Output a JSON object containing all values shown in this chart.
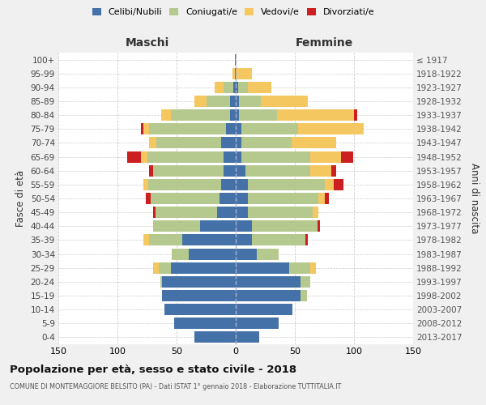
{
  "age_groups": [
    "100+",
    "95-99",
    "90-94",
    "85-89",
    "80-84",
    "75-79",
    "70-74",
    "65-69",
    "60-64",
    "55-59",
    "50-54",
    "45-49",
    "40-44",
    "35-39",
    "30-34",
    "25-29",
    "20-24",
    "15-19",
    "10-14",
    "5-9",
    "0-4"
  ],
  "birth_years": [
    "≤ 1917",
    "1918-1922",
    "1923-1927",
    "1928-1932",
    "1933-1937",
    "1938-1942",
    "1943-1947",
    "1948-1952",
    "1953-1957",
    "1958-1962",
    "1963-1967",
    "1968-1972",
    "1973-1977",
    "1978-1982",
    "1983-1987",
    "1988-1992",
    "1993-1997",
    "1998-2002",
    "2003-2007",
    "2008-2012",
    "2013-2017"
  ],
  "maschi": {
    "celibi": [
      1,
      1,
      2,
      5,
      5,
      8,
      12,
      10,
      10,
      12,
      14,
      16,
      30,
      45,
      40,
      55,
      62,
      62,
      60,
      52,
      35
    ],
    "coniugati": [
      0,
      0,
      8,
      20,
      50,
      65,
      55,
      65,
      60,
      62,
      58,
      52,
      40,
      28,
      14,
      10,
      2,
      0,
      0,
      0,
      0
    ],
    "vedovi": [
      0,
      2,
      8,
      10,
      8,
      5,
      6,
      5,
      0,
      4,
      0,
      0,
      0,
      5,
      0,
      5,
      0,
      0,
      0,
      0,
      0
    ],
    "divorziati": [
      0,
      0,
      0,
      0,
      0,
      2,
      0,
      12,
      3,
      0,
      4,
      2,
      0,
      0,
      0,
      0,
      0,
      0,
      0,
      0,
      0
    ]
  },
  "femmine": {
    "nubili": [
      0,
      0,
      2,
      3,
      3,
      5,
      5,
      5,
      8,
      10,
      10,
      10,
      14,
      14,
      18,
      45,
      55,
      55,
      48,
      36,
      20
    ],
    "coniugate": [
      0,
      0,
      8,
      18,
      32,
      48,
      42,
      58,
      55,
      65,
      60,
      55,
      55,
      45,
      18,
      18,
      8,
      5,
      0,
      0,
      0
    ],
    "vedove": [
      0,
      14,
      20,
      40,
      65,
      55,
      38,
      26,
      18,
      8,
      5,
      5,
      0,
      0,
      0,
      5,
      0,
      0,
      0,
      0,
      0
    ],
    "divorziate": [
      0,
      0,
      0,
      0,
      3,
      0,
      0,
      10,
      4,
      8,
      4,
      0,
      2,
      2,
      0,
      0,
      0,
      0,
      0,
      0,
      0
    ]
  },
  "colors": {
    "celibi": "#4472a8",
    "coniugati": "#b5c98e",
    "vedovi": "#f5c761",
    "divorziati": "#cc2020"
  },
  "xlim": 150,
  "title": "Popolazione per età, sesso e stato civile - 2018",
  "subtitle": "COMUNE DI MONTEMAGGIORE BELSITO (PA) - Dati ISTAT 1° gennaio 2018 - Elaborazione TUTTITALIA.IT",
  "xlabel_left": "Maschi",
  "xlabel_right": "Femmine",
  "ylabel_left": "Fasce di età",
  "ylabel_right": "Anni di nascita",
  "legend_labels": [
    "Celibi/Nubili",
    "Coniugati/e",
    "Vedovi/e",
    "Divorziati/e"
  ],
  "bg_color": "#f0f0f0",
  "plot_bg": "#ffffff"
}
